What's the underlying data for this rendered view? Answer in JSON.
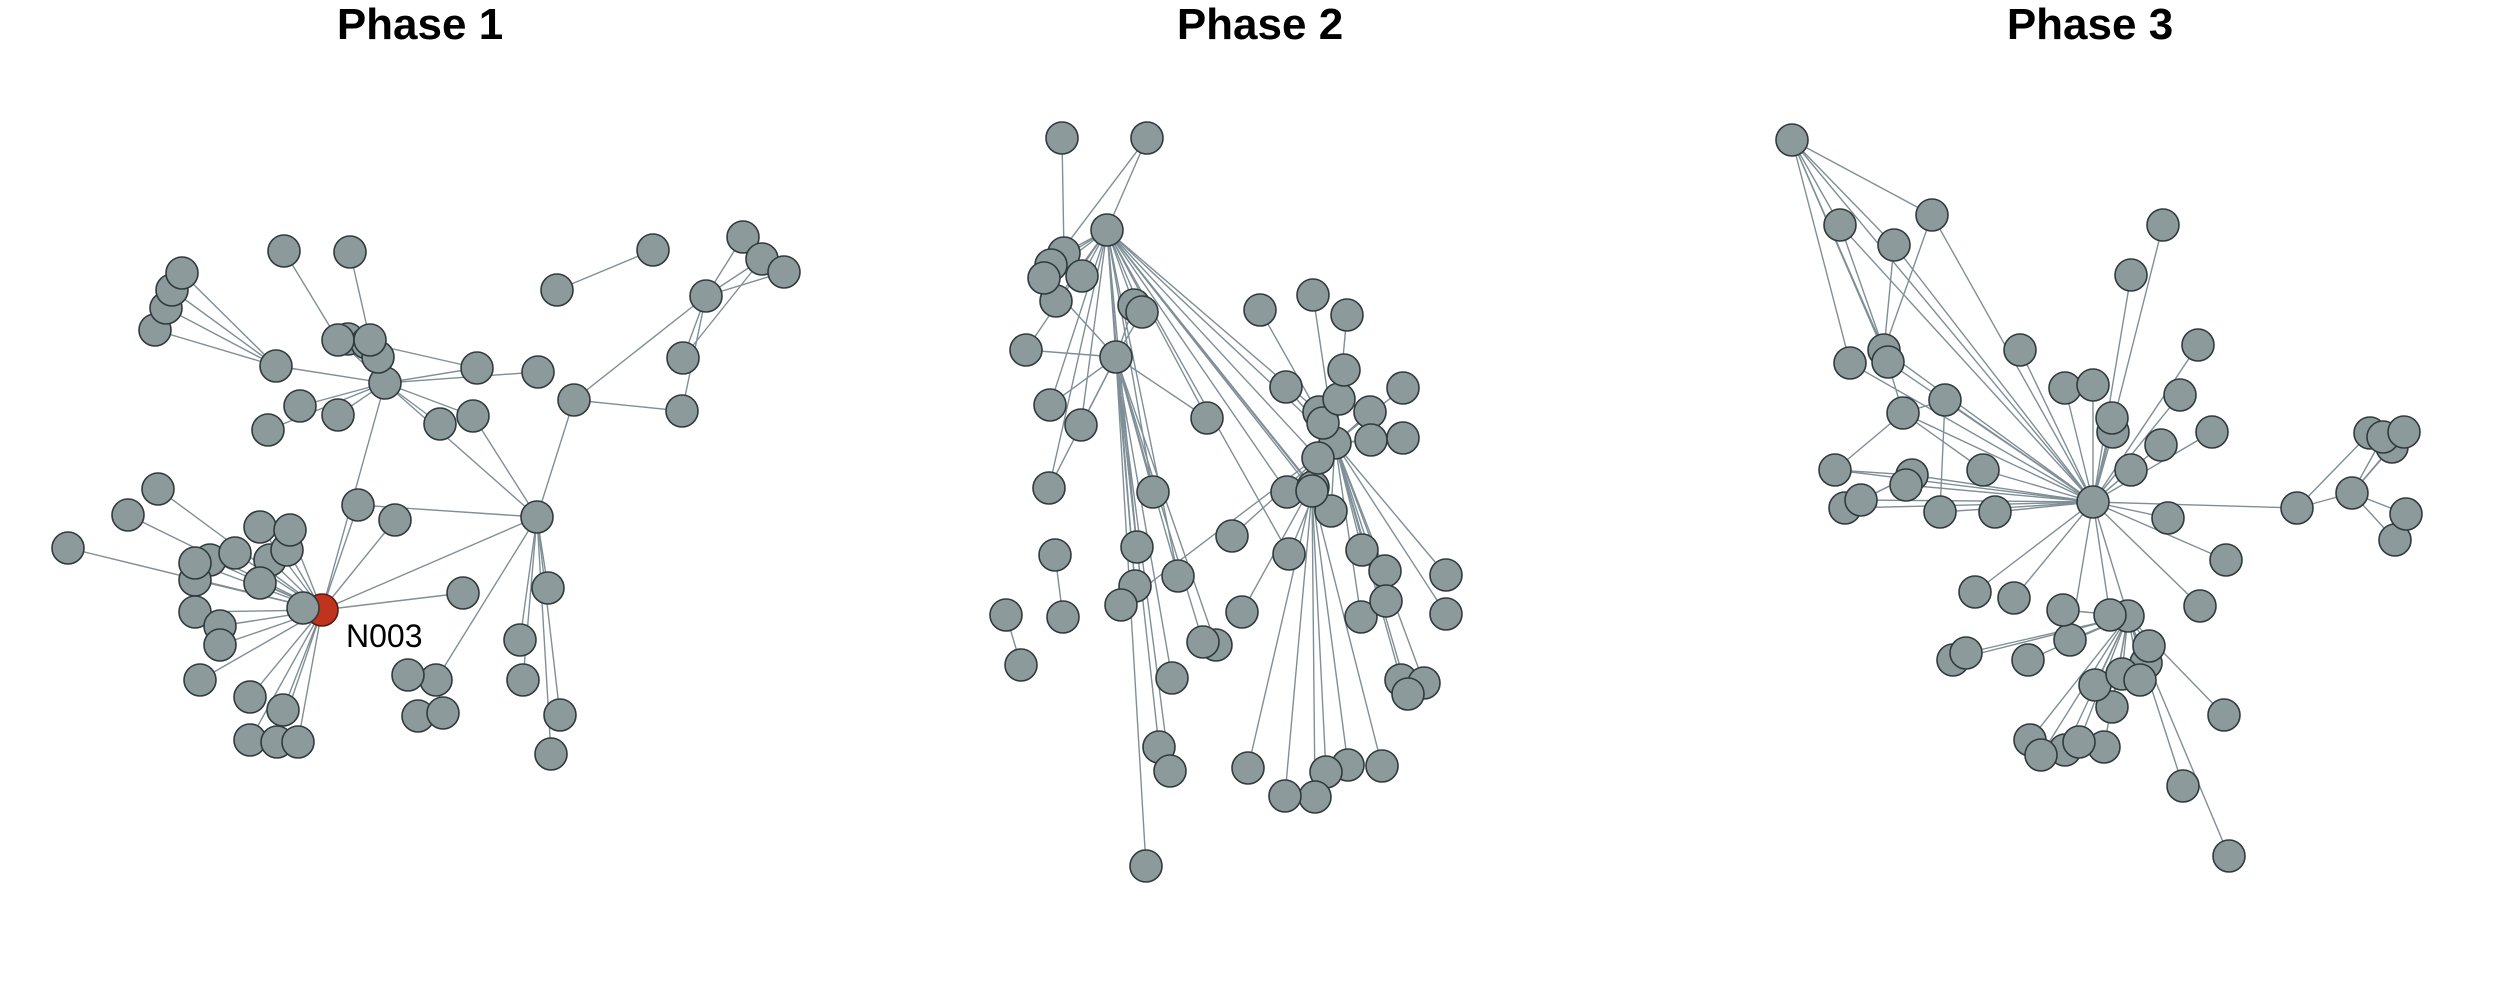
{
  "colors": {
    "node": "#8c9a9c",
    "highlight": "#c0341d",
    "edge": "#7f8f97"
  },
  "panels": [
    {
      "title": "Phase 1",
      "highlight_label": "N003"
    },
    {
      "title": "Phase 2"
    },
    {
      "title": "Phase 3"
    }
  ]
}
